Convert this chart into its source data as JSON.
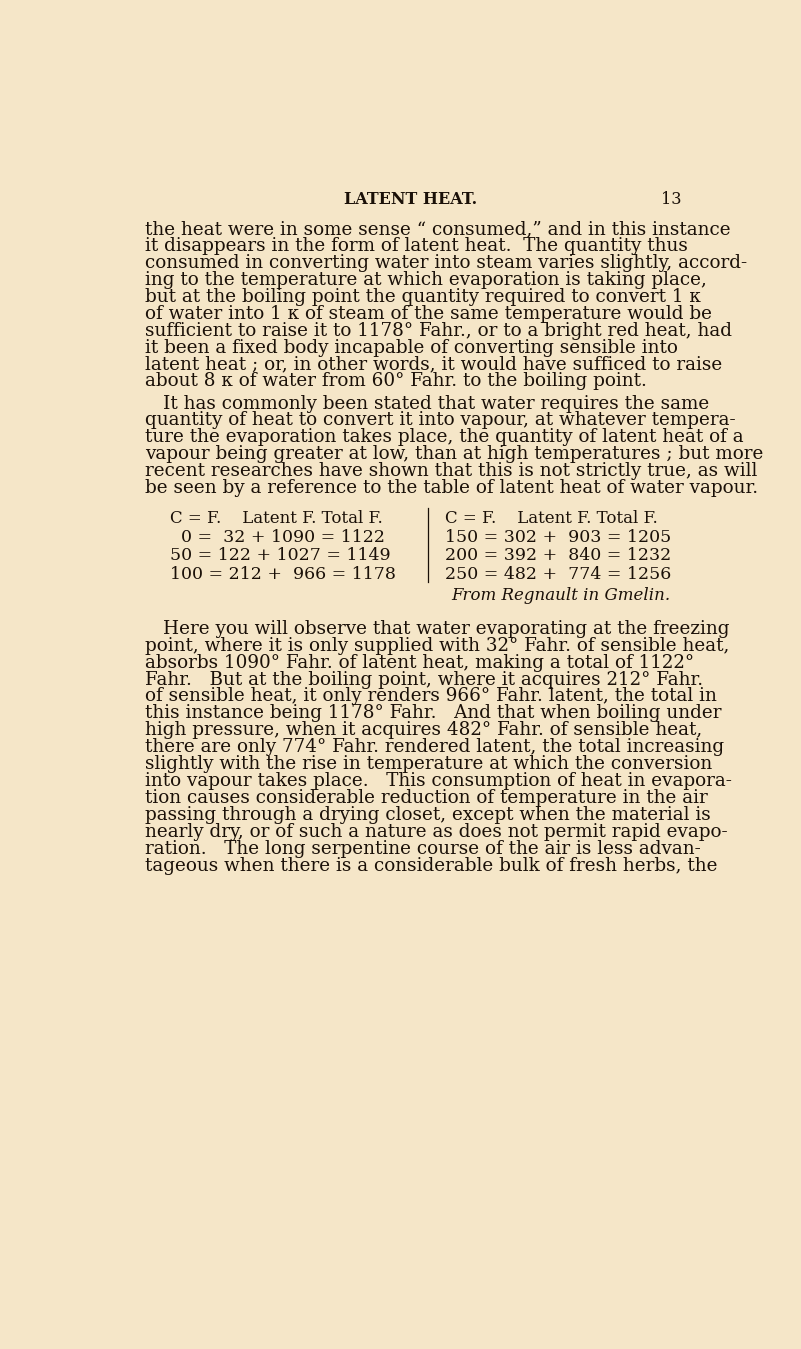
{
  "bg_color": "#f5e6c8",
  "text_color": "#1a1008",
  "header_title": "LATENT HEAT.",
  "header_page": "13",
  "paragraph1": "the heat were in some sense “ consumed,” and in this instance\nit disappears in the form of latent heat.  The quantity thus\nconsumed in converting water into steam varies slightly, accord-\ning to the temperature at which evaporation is taking place,\nbut at the boiling point the quantity required to convert 1 ᴋ\nof water into 1 ᴋ of steam of the same temperature would be\nsufficient to raise it to 1178° Fahr., or to a bright red heat, had\nit been a fixed body incapable of converting sensible into\nlatent heat ; or, in other words, it would have sufficed to raise\nabout 8 ᴋ of water from 60° Fahr. to the boiling point.",
  "paragraph2": "It has commonly been stated that water requires the same\nquantity of heat to convert it into vapour, at whatever tempera-\nture the evaporation takes place, the quantity of latent heat of a\nvapour being greater at low, than at high temperatures ; but more\nrecent researches have shown that this is not strictly true, as will\nbe seen by a reference to the table of latent heat of water vapour.",
  "table_header_left": "C = F.    Latent F. Total F.",
  "table_header_right": "C = F.    Latent F. Total F.",
  "table_rows_left": [
    "  0 =  32 + 1090 = 1122",
    "50 = 122 + 1027 = 1149",
    "100 = 212 +  966 = 1178"
  ],
  "table_rows_right": [
    "150 = 302 +  903 = 1205",
    "200 = 392 +  840 = 1232",
    "250 = 482 +  774 = 1256"
  ],
  "table_attribution": "From Regnault in Gmelin.",
  "paragraph3": "Here you will observe that water evaporating at the freezing\npoint, where it is only supplied with 32° Fahr. of sensible heat,\nabsorbs 1090° Fahr. of latent heat, making a total of 1122°\nFahr.   But at the boiling point, where it acquires 212° Fahr.\nof sensible heat, it only renders 966° Fahr. latent, the total in\nthis instance being 1178° Fahr.   And that when boiling under\nhigh pressure, when it acquires 482° Fahr. of sensible heat,\nthere are only 774° Fahr. rendered latent, the total increasing\nslightly with the rise in temperature at which the conversion\ninto vapour takes place.   This consumption of heat in evapora-\ntion causes considerable reduction of temperature in the air\npassing through a drying closet, except when the material is\nnearly dry, or of such a nature as does not permit rapid evapo-\nration.   The long serpentine course of the air is less advan-\ntageous when there is a considerable bulk of fresh herbs, the"
}
